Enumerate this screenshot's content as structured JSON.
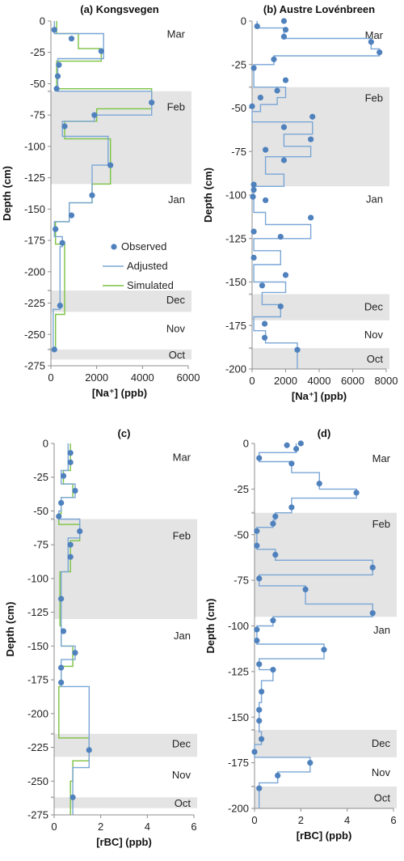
{
  "colors": {
    "observed": "#4f81bd",
    "adjusted": "#7aa6d6",
    "simulated": "#7cc242",
    "season_band": "#e4e4e4",
    "axis": "#8c8c8c"
  },
  "legend": {
    "observed": "Observed",
    "adjusted": "Adjusted",
    "simulated": "Simulated"
  },
  "chart_data": [
    {
      "id": "a",
      "type": "line",
      "panel_label": "(a)",
      "title": "Kongsvegen",
      "xlabel": "[Na⁺] (ppb)",
      "ylabel": "Depth (cm)",
      "xlim": [
        0,
        6000
      ],
      "ylim": [
        -275,
        0
      ],
      "xticks": [
        0,
        2000,
        4000,
        6000
      ],
      "yticks": [
        0,
        -25,
        -50,
        -75,
        -100,
        -125,
        -150,
        -175,
        -200,
        -225,
        -250,
        -275
      ],
      "grid": false,
      "legend_position": "center-right",
      "bands": [
        [
          -56,
          -130
        ],
        [
          -215,
          -232
        ],
        [
          -262,
          -270
        ]
      ],
      "months": [
        {
          "label": "Mar",
          "depth": -10
        },
        {
          "label": "Feb",
          "depth": -68
        },
        {
          "label": "Jan",
          "depth": -142
        },
        {
          "label": "Dec",
          "depth": -222
        },
        {
          "label": "Nov",
          "depth": -245
        },
        {
          "label": "Oct",
          "depth": -266
        }
      ],
      "observed": {
        "x": [
          150,
          900,
          2200,
          350,
          300,
          250,
          4400,
          1900,
          600,
          2600,
          1800,
          900,
          200,
          500,
          400,
          150
        ],
        "y": [
          -7,
          -14,
          -24,
          -35,
          -44,
          -54,
          -65,
          -75,
          -84,
          -115,
          -139,
          -155,
          -166,
          -177,
          -227,
          -262
        ]
      },
      "adjusted": {
        "depth": [
          0,
          -10,
          -20,
          -30,
          -40,
          -50,
          -56,
          -75,
          -80,
          -92,
          -115,
          -145,
          -160,
          -172,
          -180,
          -230,
          -262
        ],
        "value": [
          150,
          2300,
          2300,
          300,
          300,
          300,
          4400,
          1900,
          500,
          2500,
          1800,
          800,
          150,
          500,
          400,
          100,
          100
        ]
      },
      "simulated": {
        "depth": [
          0,
          -10,
          -22,
          -32,
          -42,
          -54,
          -70,
          -80,
          -94,
          -130,
          -145,
          -160,
          -178,
          -234,
          -262
        ],
        "value": [
          250,
          1200,
          2200,
          250,
          250,
          4400,
          2000,
          600,
          2600,
          1800,
          800,
          200,
          600,
          200,
          100
        ]
      }
    },
    {
      "id": "b",
      "type": "line",
      "panel_label": "(b)",
      "title": "Austre Lovénbreen",
      "xlabel": "[Na⁺] (ppb)",
      "ylabel": "Depth (cm)",
      "xlim": [
        0,
        8000
      ],
      "ylim": [
        -200,
        0
      ],
      "xticks": [
        0,
        2000,
        4000,
        6000,
        8000
      ],
      "yticks": [
        0,
        -25,
        -50,
        -75,
        -100,
        -125,
        -150,
        -175,
        -200
      ],
      "grid": false,
      "bands": [
        [
          -38,
          -95
        ],
        [
          -157,
          -172
        ],
        [
          -188,
          -200
        ]
      ],
      "months": [
        {
          "label": "Mar",
          "depth": -8
        },
        {
          "label": "Feb",
          "depth": -44
        },
        {
          "label": "Jan",
          "depth": -102
        },
        {
          "label": "Dec",
          "depth": -164
        },
        {
          "label": "Nov",
          "depth": -180
        },
        {
          "label": "Oct",
          "depth": -194
        }
      ],
      "observed": {
        "x": [
          1900,
          300,
          2000,
          1900,
          7100,
          7600,
          1300,
          100,
          2000,
          1500,
          500,
          0,
          3600,
          1900,
          3500,
          800,
          1900,
          100,
          100,
          50,
          800,
          3500,
          100,
          1700,
          100,
          2000,
          600,
          1700,
          750,
          750,
          2700
        ],
        "y": [
          0,
          -3,
          -5,
          -9,
          -12,
          -18,
          -22,
          -27,
          -34,
          -40,
          -44,
          -49,
          -55,
          -61,
          -68,
          -74,
          -80,
          -94,
          -97,
          -101,
          -103,
          -113,
          -121,
          -124,
          -136,
          -146,
          -152,
          -164,
          -174,
          -182,
          -189
        ]
      },
      "adjusted": {
        "depth": [
          0,
          -4,
          -10,
          -16,
          -20,
          -25,
          -35,
          -38,
          -44,
          -48,
          -52,
          -58,
          -65,
          -72,
          -78,
          -88,
          -95,
          -100,
          -104,
          -110,
          -117,
          -125,
          -132,
          -140,
          -150,
          -156,
          -163,
          -170,
          -178,
          -185,
          -200
        ],
        "value": [
          300,
          1900,
          7100,
          7600,
          1300,
          100,
          100,
          2000,
          1500,
          500,
          0,
          3600,
          1900,
          3500,
          800,
          1900,
          100,
          100,
          100,
          800,
          3500,
          100,
          1700,
          100,
          2000,
          600,
          1700,
          100,
          800,
          2700,
          2700
        ]
      }
    },
    {
      "id": "c",
      "type": "line",
      "panel_label": "(c)",
      "title": "",
      "xlabel": "[rBC] (ppb)",
      "ylabel": "Depth (cm)",
      "xlim": [
        0,
        6
      ],
      "ylim": [
        -275,
        0
      ],
      "xticks": [
        0,
        2,
        4,
        6
      ],
      "yticks": [
        0,
        -25,
        -50,
        -75,
        -100,
        -125,
        -150,
        -175,
        -200,
        -225,
        -250,
        -275
      ],
      "grid": false,
      "bands": [
        [
          -56,
          -130
        ],
        [
          -215,
          -232
        ],
        [
          -262,
          -270
        ]
      ],
      "months": [
        {
          "label": "Mar",
          "depth": -10
        },
        {
          "label": "Feb",
          "depth": -68
        },
        {
          "label": "Jan",
          "depth": -142
        },
        {
          "label": "Dec",
          "depth": -222
        },
        {
          "label": "Nov",
          "depth": -245
        },
        {
          "label": "Oct",
          "depth": -266
        }
      ],
      "observed": {
        "x": [
          0.7,
          0.7,
          0.4,
          0.9,
          0.3,
          0.2,
          1.1,
          0.7,
          0.7,
          0.3,
          0.4,
          0.9,
          0.3,
          0.3,
          1.5,
          0.8
        ],
        "y": [
          -7,
          -14,
          -24,
          -35,
          -44,
          -54,
          -65,
          -75,
          -84,
          -115,
          -139,
          -155,
          -166,
          -177,
          -227,
          -262
        ]
      },
      "adjusted": {
        "depth": [
          0,
          -10,
          -20,
          -30,
          -40,
          -50,
          -56,
          -70,
          -80,
          -95,
          -130,
          -150,
          -160,
          -172,
          -180,
          -240,
          -262,
          -275
        ],
        "value": [
          0.6,
          0.6,
          0.3,
          0.9,
          0.3,
          0.2,
          1.1,
          0.6,
          0.6,
          0.3,
          0.3,
          0.9,
          0.3,
          0.3,
          1.5,
          0.8,
          0.8,
          0.8
        ]
      },
      "simulated": {
        "depth": [
          0,
          -10,
          -20,
          -30,
          -40,
          -52,
          -60,
          -72,
          -80,
          -95,
          -135,
          -150,
          -165,
          -180,
          -218,
          -235,
          -250,
          -275
        ],
        "value": [
          0.7,
          0.7,
          0.4,
          0.8,
          0.3,
          0.2,
          1.1,
          0.7,
          0.7,
          0.25,
          0.3,
          0.8,
          0.3,
          0.2,
          1.5,
          0.8,
          0.7,
          0.7
        ]
      }
    },
    {
      "id": "d",
      "type": "line",
      "panel_label": "(d)",
      "title": "",
      "xlabel": "[rBC] (ppb)",
      "ylabel": "Depth (cm)",
      "xlim": [
        0,
        6
      ],
      "ylim": [
        -200,
        0
      ],
      "xticks": [
        0,
        2,
        4,
        6
      ],
      "yticks": [
        0,
        -25,
        -50,
        -75,
        -100,
        -125,
        -150,
        -175,
        -200
      ],
      "grid": false,
      "bands": [
        [
          -38,
          -95
        ],
        [
          -157,
          -172
        ],
        [
          -188,
          -200
        ]
      ],
      "months": [
        {
          "label": "Mar",
          "depth": -8
        },
        {
          "label": "Feb",
          "depth": -44
        },
        {
          "label": "Jan",
          "depth": -102
        },
        {
          "label": "Dec",
          "depth": -164
        },
        {
          "label": "Nov",
          "depth": -180
        },
        {
          "label": "Oct",
          "depth": -194
        }
      ],
      "observed": {
        "x": [
          2.0,
          1.4,
          1.8,
          0.2,
          1.6,
          2.8,
          4.4,
          1.6,
          0.9,
          0.8,
          0.1,
          0.1,
          0.9,
          5.1,
          0.2,
          2.2,
          5.1,
          0.8,
          0.1,
          0.1,
          3.0,
          0.2,
          0.8,
          0.3,
          0.2,
          0.2,
          0.3,
          0.0,
          2.4,
          1.0,
          0.2
        ],
        "y": [
          0,
          -1,
          -3,
          -8,
          -11,
          -22,
          -27,
          -35,
          -40,
          -44,
          -48,
          -56,
          -61,
          -68,
          -74,
          -80,
          -93,
          -97,
          -102,
          -108,
          -113,
          -121,
          -124,
          -136,
          -146,
          -152,
          -162,
          -169,
          -175,
          -182,
          -189
        ]
      },
      "adjusted": {
        "depth": [
          0,
          -5,
          -10,
          -16,
          -25,
          -30,
          -38,
          -42,
          -46,
          -52,
          -58,
          -64,
          -72,
          -78,
          -88,
          -95,
          -100,
          -105,
          -110,
          -118,
          -124,
          -130,
          -142,
          -150,
          -158,
          -165,
          -172,
          -180,
          -186,
          -200
        ],
        "value": [
          1.8,
          0.2,
          1.6,
          2.8,
          4.4,
          1.6,
          0.9,
          0.8,
          0.1,
          0.1,
          0.9,
          5.1,
          0.2,
          2.2,
          5.1,
          0.8,
          0.1,
          0.1,
          3.0,
          0.2,
          0.8,
          0.3,
          0.2,
          0.2,
          0.3,
          0.0,
          2.4,
          1.0,
          0.2,
          0.2
        ]
      }
    }
  ]
}
